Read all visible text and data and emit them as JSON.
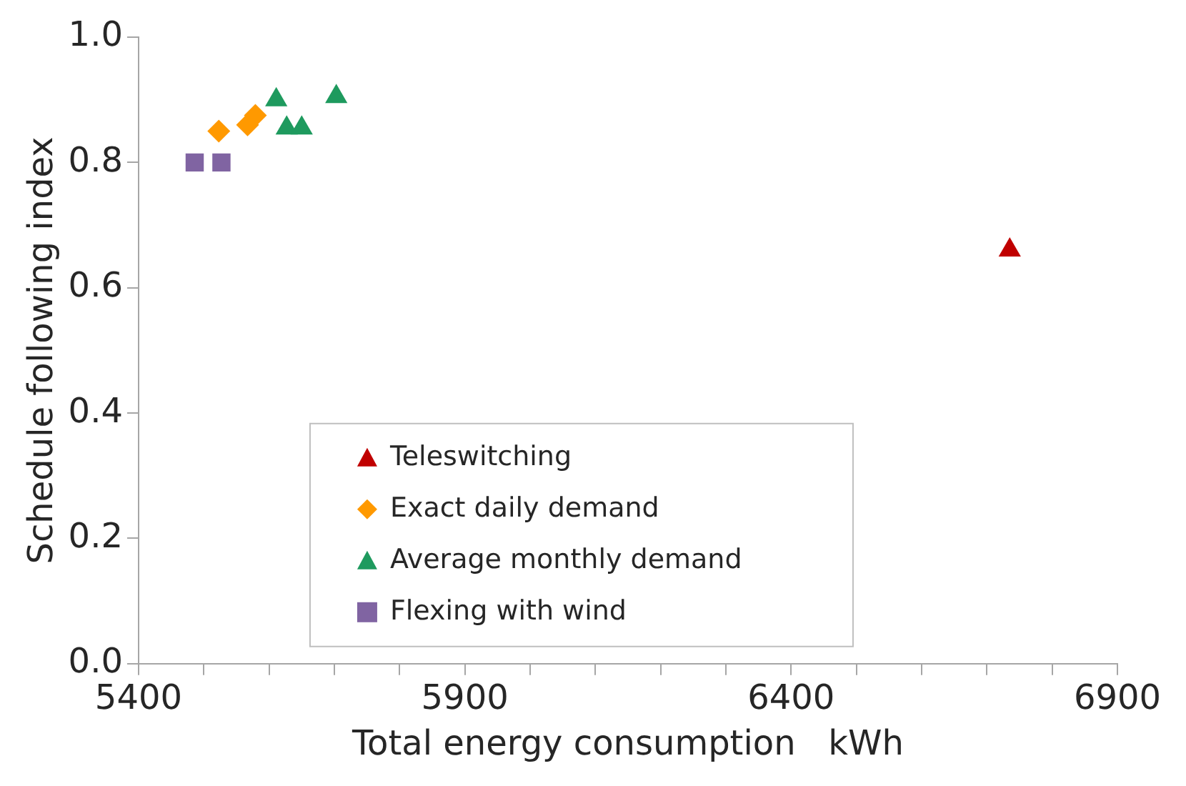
{
  "chart_data": {
    "type": "scatter",
    "xlabel": "Total energy consumption   kWh",
    "ylabel": "Schedule following index",
    "xlim": [
      5400,
      6900
    ],
    "xticks": [
      5400,
      {
        "value": 5500,
        "label": null
      },
      {
        "value": 5600,
        "label": null
      },
      {
        "value": 5700,
        "label": null
      },
      {
        "value": 5800,
        "label": null
      },
      5900,
      {
        "value": 6000,
        "label": null
      },
      {
        "value": 6100,
        "label": null
      },
      {
        "value": 6200,
        "label": null
      },
      {
        "value": 6300,
        "label": null
      },
      6400,
      {
        "value": 6500,
        "label": null
      },
      {
        "value": 6600,
        "label": null
      },
      {
        "value": 6700,
        "label": null
      },
      {
        "value": 6800,
        "label": null
      },
      6900
    ],
    "ylim": [
      0,
      1
    ],
    "yticks": [
      {
        "value": 0,
        "label": "0.0"
      },
      {
        "value": 0.2,
        "label": "0.2"
      },
      {
        "value": 0.4,
        "label": "0.4"
      },
      {
        "value": 0.6,
        "label": "0.6"
      },
      {
        "value": 0.8,
        "label": "0.8"
      },
      {
        "value": 1,
        "label": "1.0"
      }
    ],
    "grid": false,
    "legend": "bottom",
    "series": [
      {
        "name": "Teleswitching",
        "color": "#c00000",
        "marker": "triangle",
        "x": [
          6735
        ],
        "values": [
          0.66
        ]
      },
      {
        "name": "Exact daily demand",
        "color": "#ff9900",
        "marker": "diamond",
        "x": [
          5523,
          5567,
          5579
        ],
        "values": [
          0.85,
          0.86,
          0.875
        ]
      },
      {
        "name": "Average monthly demand",
        "color": "#1e9a5e",
        "marker": "triangle",
        "x": [
          5611,
          5703,
          5627,
          5650
        ],
        "values": [
          0.9,
          0.905,
          0.855,
          0.855
        ]
      },
      {
        "name": "Flexing with wind",
        "color": "#8064a2",
        "marker": "square",
        "x": [
          5486,
          5527
        ],
        "values": [
          0.8,
          0.8
        ]
      }
    ]
  }
}
